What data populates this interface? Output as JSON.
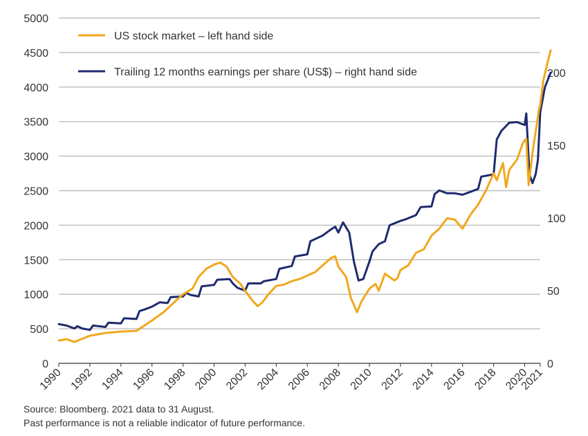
{
  "colors": {
    "stock": "#F0A81C",
    "eps": "#1F2A6E",
    "grid": "#BDBDBD",
    "axis": "#333333",
    "text": "#333333"
  },
  "footnotes": {
    "source": "Source: Bloomberg. 2021 data to 31 August.",
    "disclaimer": "Past performance is not a reliable indicator of future performance."
  },
  "chart_data": {
    "type": "line",
    "title": "",
    "xlabel": "",
    "ylabel_left": "",
    "ylabel_right": "",
    "xlim": [
      1990,
      2021
    ],
    "ylim_left": [
      0,
      5000
    ],
    "ylim_right": [
      0,
      238
    ],
    "x_ticks": [
      "1990",
      "1992",
      "1994",
      "1996",
      "1998",
      "2000",
      "2002",
      "2004",
      "2006",
      "2008",
      "2010",
      "2012",
      "2014",
      "2016",
      "2018",
      "2020",
      "2021"
    ],
    "y_left_ticks": [
      "0",
      "500",
      "1000",
      "1500",
      "2000",
      "2500",
      "3000",
      "3500",
      "4000",
      "4500",
      "5000"
    ],
    "y_right_ticks": [
      "0",
      "50",
      "100",
      "150",
      "200"
    ],
    "grid": "horizontal",
    "legend_position": "top-left",
    "series": [
      {
        "name": "US stock market – left hand side",
        "axis": "left",
        "x": [
          1990,
          1990.5,
          1991,
          1992,
          1993,
          1994,
          1995,
          1996,
          1996.8,
          1997.5,
          1998,
          1998.6,
          1999,
          1999.5,
          2000,
          2000.4,
          2000.8,
          2001.2,
          2001.7,
          2002,
          2002.5,
          2002.8,
          2003.1,
          2003.5,
          2004,
          2004.5,
          2005,
          2005.5,
          2006,
          2006.5,
          2007,
          2007.5,
          2007.8,
          2008,
          2008.5,
          2008.8,
          2009.2,
          2009.5,
          2010,
          2010.4,
          2010.6,
          2011,
          2011.6,
          2011.8,
          2012,
          2012.5,
          2013,
          2013.5,
          2014,
          2014.5,
          2015,
          2015.5,
          2015.8,
          2016,
          2016.5,
          2017,
          2017.5,
          2018,
          2018.2,
          2018.6,
          2018.8,
          2019,
          2019.5,
          2019.9,
          2020.1,
          2020.25,
          2020.5,
          2020.7,
          2020.9,
          2021,
          2021.2,
          2021.5,
          2021.67
        ],
        "values": [
          330,
          350,
          310,
          400,
          440,
          460,
          470,
          620,
          750,
          900,
          1000,
          1080,
          1250,
          1370,
          1430,
          1460,
          1400,
          1250,
          1150,
          1050,
          900,
          830,
          880,
          1000,
          1120,
          1140,
          1190,
          1220,
          1270,
          1320,
          1420,
          1520,
          1550,
          1400,
          1250,
          950,
          740,
          900,
          1080,
          1150,
          1050,
          1300,
          1200,
          1230,
          1350,
          1420,
          1600,
          1650,
          1850,
          1950,
          2100,
          2080,
          2000,
          1950,
          2150,
          2300,
          2500,
          2750,
          2650,
          2900,
          2550,
          2800,
          2950,
          3200,
          3250,
          2580,
          3050,
          3350,
          3650,
          3750,
          4100,
          4380,
          4530
        ]
      },
      {
        "name": "Trailing 12 months earnings per share (US$) – right hand side",
        "axis": "right",
        "x": [
          1990,
          1990.5,
          1991,
          1991.2,
          1991.5,
          1992,
          1992.2,
          1993,
          1993.2,
          1994,
          1994.2,
          1995,
          1995.2,
          1995.5,
          1996,
          1996.5,
          1997,
          1997.2,
          1998,
          1998.2,
          1998.5,
          1999,
          1999.2,
          2000,
          2000.2,
          2001,
          2001.2,
          2001.5,
          2002,
          2002.2,
          2003,
          2003.2,
          2004,
          2004.2,
          2005,
          2005.2,
          2006,
          2006.2,
          2007,
          2007.5,
          2007.8,
          2008,
          2008.3,
          2008.7,
          2009,
          2009.3,
          2009.6,
          2010,
          2010.2,
          2010.6,
          2011,
          2011.3,
          2012,
          2012.3,
          2013,
          2013.3,
          2014,
          2014.2,
          2014.5,
          2015,
          2015.5,
          2016,
          2016.5,
          2017,
          2017.2,
          2018,
          2018.2,
          2018.5,
          2019,
          2019.5,
          2020,
          2020.1,
          2020.3,
          2020.5,
          2020.7,
          2020.85,
          2021,
          2021.3,
          2021.67
        ],
        "values": [
          27,
          26,
          24,
          25.5,
          24,
          23,
          26,
          25,
          28,
          27.5,
          31,
          30.5,
          36,
          37,
          39,
          42,
          41.5,
          45.5,
          46,
          48.5,
          47,
          46,
          53,
          54,
          57.5,
          58,
          55,
          52,
          50,
          55,
          55,
          56.5,
          58,
          65,
          67,
          73.5,
          75,
          84,
          88,
          92,
          94,
          90,
          97,
          90,
          70,
          57,
          58,
          70,
          77,
          82,
          84,
          95,
          98,
          99,
          102,
          107.5,
          108,
          116.5,
          119,
          117,
          117,
          116,
          118,
          120,
          128.5,
          130,
          154,
          160,
          165.5,
          166,
          164,
          172,
          130,
          124,
          130,
          140,
          173,
          190,
          200
        ]
      }
    ]
  }
}
